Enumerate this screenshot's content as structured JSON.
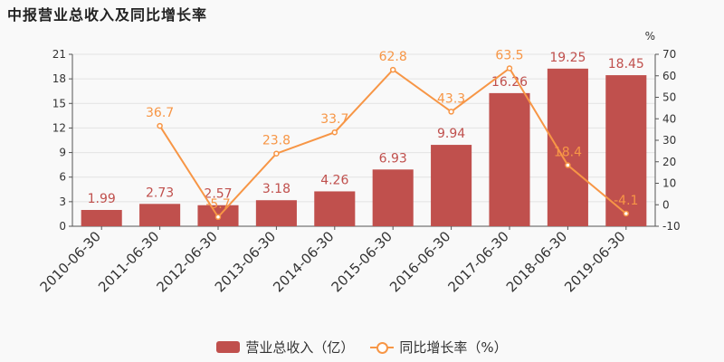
{
  "title": "中报营业总收入及同比增长率",
  "chart_data": {
    "type": "bar",
    "categories": [
      "2010-06-30",
      "2011-06-30",
      "2012-06-30",
      "2013-06-30",
      "2014-06-30",
      "2015-06-30",
      "2016-06-30",
      "2017-06-30",
      "2018-06-30",
      "2019-06-30"
    ],
    "series": [
      {
        "name": "营业总收入（亿）",
        "type": "bar",
        "axis": "left",
        "values": [
          1.99,
          2.73,
          2.57,
          3.18,
          4.26,
          6.93,
          9.94,
          16.26,
          19.25,
          18.45
        ]
      },
      {
        "name": "同比增长率（%）",
        "type": "line",
        "axis": "right",
        "values": [
          null,
          36.7,
          -5.7,
          23.8,
          33.7,
          62.8,
          43.3,
          63.5,
          18.4,
          -4.1
        ],
        "labels": [
          "",
          "36.7",
          "-5.7",
          "23.8",
          "33.7",
          "62.8",
          "43.3",
          "63.5",
          "18.4",
          "-4.1"
        ]
      }
    ],
    "yaxis_left": {
      "min": 0,
      "max": 21,
      "ticks": [
        0,
        3,
        6,
        9,
        12,
        15,
        18,
        21
      ]
    },
    "yaxis_right": {
      "min": -10,
      "max": 70,
      "ticks": [
        -10,
        0,
        10,
        20,
        30,
        40,
        50,
        60,
        70
      ],
      "unit": "%"
    },
    "legend_position": "bottom",
    "grid": true,
    "colors": {
      "bar": "#c0504d",
      "line": "#f79646",
      "bar_label": "#c0504d",
      "line_label": "#f79646"
    }
  }
}
